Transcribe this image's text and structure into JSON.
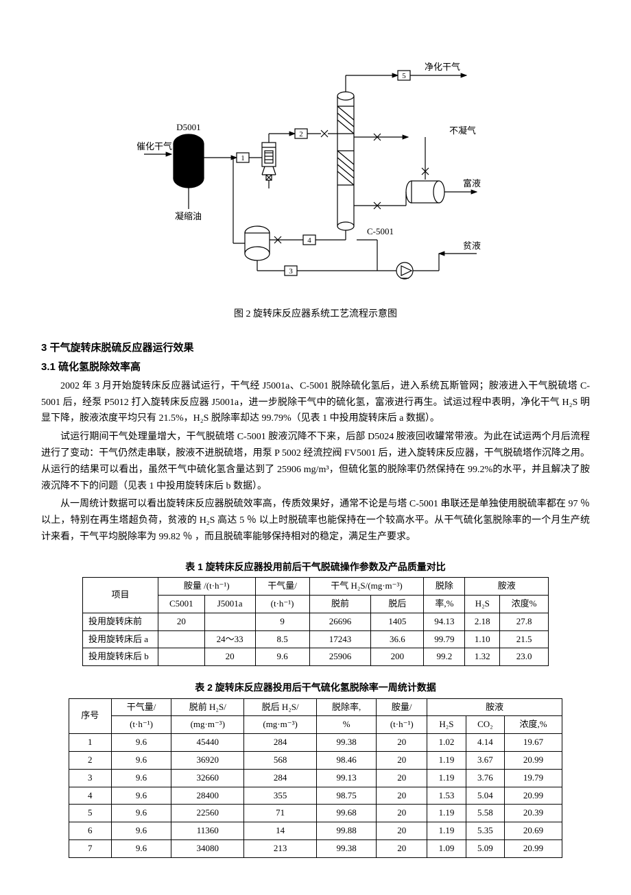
{
  "figure": {
    "caption": "图 2    旋转床反应器系统工艺流程示意图",
    "labels": {
      "purified_gas": "净化干气",
      "feed_gas": "催化干气",
      "d5001": "D5001",
      "condensate": "凝缩油",
      "slurry": "不凝气",
      "rich_liquid": "富液",
      "lean_liquid": "贫液",
      "c5001": "C-5001",
      "n1": "1",
      "n2": "2",
      "n3": "3",
      "n4": "4",
      "n5": "5"
    }
  },
  "section3": {
    "heading": "3 干气旋转床脱硫反应器运行效果",
    "sub1_heading": "3.1 硫化氢脱除效率高",
    "para1": "2002 年 3 月开始旋转床反应器试运行，干气经 J5001a、C-5001 脱除硫化氢后，进入系统瓦斯管网；胺液进入干气脱硫塔 C-5001 后，经泵 P5012 打入旋转床反应器 J5001a，进一步脱除干气中的硫化氢，富液进行再生。试运过程中表明，净化干气 H₂S 明显下降，胺液浓度平均只有 21.5%，H₂S 脱除率却达 99.79%（见表 1 中投用旋转床后 a 数据）。",
    "para2": "试运行期间干气处理量增大，干气脱硫塔 C-5001 胺液沉降不下来，后部 D5024 胺液回收罐常带液。为此在试运两个月后流程进行了变动：干气仍然走串联，胺液不进脱硫塔，用泵 P 5002 经流控阀 FV5001 后，进入旋转床反应器，干气脱硫塔作沉降之用。从运行的结果可以看出，虽然干气中硫化氢含量达到了 25906 mg/m³，但硫化氢的脱除率仍然保持在 99.2%的水平，并且解决了胺液沉降不下的问题（见表 1 中投用旋转床后 b 数据）。",
    "para3": "从一周统计数据可以看出旋转床反应器脱硫效率高，传质效果好，通常不论是与塔 C-5001 串联还是单独使用脱硫率都在 97 ％ 以上，特别在再生塔超负荷，贫液的 H₂S 高达 5 ％ 以上时脱硫率也能保持在一个较高水平。从干气硫化氢脱除率的一个月生产统计来看，干气平均脱除率为 99.82 ％ ，而且脱硫率能够保持相对的稳定，满足生产要求。"
  },
  "table1": {
    "caption": "表 1    旋转床反应器投用前后干气脱硫操作参数及产品质量对比",
    "headers": {
      "item": "项目",
      "amine": "胺量  /(t·h⁻¹)",
      "c5001": "C5001",
      "j5001a": "J5001a",
      "gas": "干气量/",
      "gas_unit": "(t·h⁻¹)",
      "h2s": "干气 H₂S/(mg·m⁻³)",
      "before": "脱前",
      "after": "脱后",
      "removal": "脱除",
      "removal_unit": "率,%",
      "amine_liq": "胺液",
      "h2s_col": "H₂S",
      "conc": "浓度%"
    },
    "rows": [
      {
        "label": "投用旋转床前",
        "c5001": "20",
        "j5001a": "",
        "gas": "9",
        "before": "26696",
        "after": "1405",
        "removal": "94.13",
        "h2s": "2.18",
        "conc": "27.8"
      },
      {
        "label": "投用旋转床后 a",
        "c5001": "",
        "j5001a": "24～33",
        "gas": "8.5",
        "before": "17243",
        "after": "36.6",
        "removal": "99.79",
        "h2s": "1.10",
        "conc": "21.5"
      },
      {
        "label": "投用旋转床后 b",
        "c5001": "",
        "j5001a": "20",
        "gas": "9.6",
        "before": "25906",
        "after": "200",
        "removal": "99.2",
        "h2s": "1.32",
        "conc": "23.0"
      }
    ]
  },
  "table2": {
    "caption": "表 2   旋转床反应器投用后干气硫化氢脱除率一周统计数据",
    "headers": {
      "seq": "序号",
      "gas": "干气量/",
      "gas_unit": "(t·h⁻¹)",
      "before": "脱前 H₂S/",
      "before_unit": "(mg·m⁻³)",
      "after": "脱后 H₂S/",
      "after_unit": "(mg·m⁻³)",
      "removal": "脱除率,",
      "removal_unit": "%",
      "amine": "胺量/",
      "amine_unit": "(t·h⁻¹)",
      "amine_liq": "胺液",
      "h2s": "H₂S",
      "co2": "CO₂",
      "conc": "浓度,%"
    },
    "rows": [
      {
        "seq": "1",
        "gas": "9.6",
        "before": "45440",
        "after": "284",
        "removal": "99.38",
        "amine": "20",
        "h2s": "1.02",
        "co2": "4.14",
        "conc": "19.67"
      },
      {
        "seq": "2",
        "gas": "9.6",
        "before": "36920",
        "after": "568",
        "removal": "98.46",
        "amine": "20",
        "h2s": "1.19",
        "co2": "3.67",
        "conc": "20.99"
      },
      {
        "seq": "3",
        "gas": "9.6",
        "before": "32660",
        "after": "284",
        "removal": "99.13",
        "amine": "20",
        "h2s": "1.19",
        "co2": "3.76",
        "conc": "19.79"
      },
      {
        "seq": "4",
        "gas": "9.6",
        "before": "28400",
        "after": "355",
        "removal": "98.75",
        "amine": "20",
        "h2s": "1.53",
        "co2": "5.04",
        "conc": "20.99"
      },
      {
        "seq": "5",
        "gas": "9.6",
        "before": "22560",
        "after": "71",
        "removal": "99.68",
        "amine": "20",
        "h2s": "1.19",
        "co2": "5.58",
        "conc": "20.39"
      },
      {
        "seq": "6",
        "gas": "9.6",
        "before": "11360",
        "after": "14",
        "removal": "99.88",
        "amine": "20",
        "h2s": "1.19",
        "co2": "5.35",
        "conc": "20.69"
      },
      {
        "seq": "7",
        "gas": "9.6",
        "before": "34080",
        "after": "213",
        "removal": "99.38",
        "amine": "20",
        "h2s": "1.09",
        "co2": "5.09",
        "conc": "20.99"
      }
    ]
  }
}
